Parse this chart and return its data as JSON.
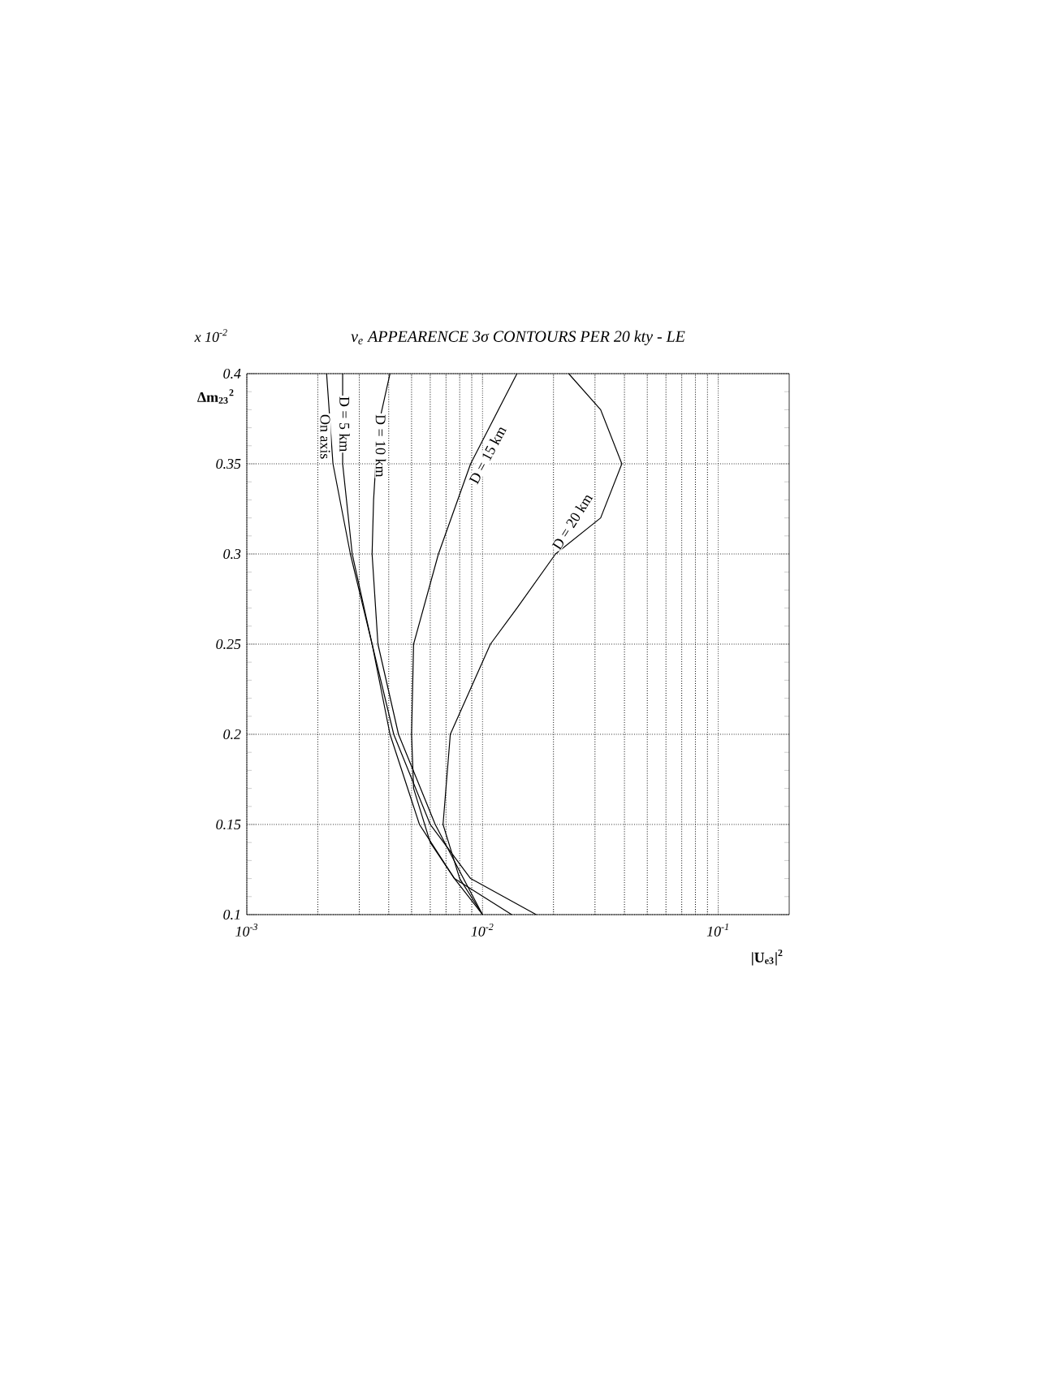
{
  "chart_data": {
    "type": "line",
    "title": "ν$_{e}$ APPEARENCE 3σ CONTOURS PER 20 kty - LE",
    "xlabel": "|U$_{e3}$|$^{2}$",
    "ylabel": "Δm$_{23}$$^{2}$",
    "log": "x",
    "xlim": [
      0.001,
      0.2
    ],
    "xticks": [
      {
        "value": 0.001,
        "label": "10$^{-3}$"
      },
      {
        "value": 0.01,
        "label": "10$^{-2}$"
      },
      {
        "value": 0.1,
        "label": "10$^{-1}$"
      }
    ],
    "ylim": [
      0.1,
      0.4
    ],
    "yticks": [
      0.1,
      0.15,
      0.2,
      0.25,
      0.3,
      0.35,
      0.4
    ],
    "grid": true,
    "marker": "none",
    "line_style": "solid",
    "series": [
      {
        "color": "#000000",
        "x": [
          0.00218,
          0.00232,
          0.00275,
          0.0034,
          0.0042,
          0.006,
          0.0089,
          0.0169
        ],
        "values": [
          0.4,
          0.35,
          0.3,
          0.25,
          0.2,
          0.15,
          0.12,
          0.1
        ]
      },
      {
        "color": "#000000",
        "x": [
          0.00255,
          0.00255,
          0.0028,
          0.0034,
          0.00405,
          0.0054,
          0.0076,
          0.0133
        ],
        "values": [
          0.4,
          0.35,
          0.3,
          0.25,
          0.2,
          0.15,
          0.12,
          0.1
        ]
      },
      {
        "color": "#000000",
        "x": [
          0.00405,
          0.0036,
          0.00345,
          0.0034,
          0.0036,
          0.0044,
          0.0063,
          0.0083,
          0.01
        ],
        "values": [
          0.4,
          0.37,
          0.33,
          0.3,
          0.25,
          0.2,
          0.15,
          0.12,
          0.1
        ]
      },
      {
        "color": "#000000",
        "x": [
          0.014,
          0.0089,
          0.0065,
          0.0051,
          0.005,
          0.0051,
          0.006,
          0.0076,
          0.01
        ],
        "values": [
          0.4,
          0.35,
          0.3,
          0.25,
          0.2,
          0.17,
          0.14,
          0.12,
          0.1
        ]
      },
      {
        "color": "#000000",
        "x": [
          0.0232,
          0.0317,
          0.039,
          0.0317,
          0.0204,
          0.014,
          0.0108,
          0.0073,
          0.0068,
          0.008,
          0.01
        ],
        "values": [
          0.4,
          0.38,
          0.35,
          0.32,
          0.3,
          0.27,
          0.25,
          0.2,
          0.15,
          0.12,
          0.1
        ]
      }
    ],
    "annotations": [
      "x 10$^{-2}$",
      {
        "text": "On axis",
        "x": 0.00215,
        "y": 0.365
      },
      {
        "text": "D = 5 km",
        "x": 0.0026,
        "y": 0.372
      },
      {
        "text": "D = 10 km",
        "x": 0.0037,
        "y": 0.36
      },
      {
        "text": "D = 15 km",
        "x": 0.0105,
        "y": 0.355
      },
      {
        "text": "D = 20 km",
        "x": 0.024,
        "y": 0.318
      }
    ]
  }
}
